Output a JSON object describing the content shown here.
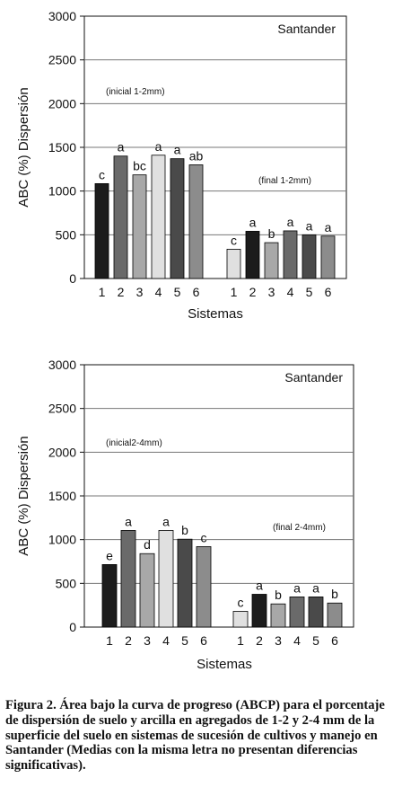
{
  "chart_data": [
    {
      "type": "bar",
      "ylabel": "ABC (%) Dispersión",
      "xlabel": "Sistemas",
      "ylim": [
        0,
        3000
      ],
      "yticks": [
        "0",
        "500",
        "1000",
        "1500",
        "2000",
        "2500",
        "3000"
      ],
      "grid": "horizontal",
      "region_label": "Santander",
      "groups": [
        {
          "label": "(inicial 1-2mm)",
          "categories": [
            "1",
            "2",
            "3",
            "4",
            "5",
            "6"
          ],
          "values": [
            1085,
            1400,
            1185,
            1410,
            1370,
            1300
          ],
          "letters": [
            "c",
            "a",
            "bc",
            "a",
            "a",
            "ab"
          ],
          "colors": [
            "#1c1c1c",
            "#6a6a6a",
            "#a8a8a8",
            "#e0e0e0",
            "#4a4a4a",
            "#8c8c8c"
          ]
        },
        {
          "label": "(final 1-2mm)",
          "categories": [
            "1",
            "2",
            "3",
            "4",
            "5",
            "6"
          ],
          "values": [
            335,
            540,
            410,
            545,
            500,
            485
          ],
          "letters": [
            "c",
            "a",
            "b",
            "a",
            "a",
            "a"
          ],
          "colors": [
            "#e0e0e0",
            "#1c1c1c",
            "#a8a8a8",
            "#6a6a6a",
            "#4a4a4a",
            "#8c8c8c"
          ]
        }
      ]
    },
    {
      "type": "bar",
      "ylabel": "ABC (%) Dispersión",
      "xlabel": "Sistemas",
      "ylim": [
        0,
        3000
      ],
      "yticks": [
        "0",
        "500",
        "1000",
        "1500",
        "2000",
        "2500",
        "3000"
      ],
      "grid": "horizontal",
      "region_label": "Santander",
      "groups": [
        {
          "label": "(inicial2-4mm)",
          "categories": [
            "1",
            "2",
            "3",
            "4",
            "5",
            "6"
          ],
          "values": [
            715,
            1105,
            840,
            1105,
            1005,
            920
          ],
          "letters": [
            "e",
            "a",
            "d",
            "a",
            "b",
            "c"
          ],
          "colors": [
            "#1c1c1c",
            "#6a6a6a",
            "#a8a8a8",
            "#e0e0e0",
            "#4a4a4a",
            "#8c8c8c"
          ]
        },
        {
          "label": "(final 2-4mm)",
          "categories": [
            "1",
            "2",
            "3",
            "4",
            "5",
            "6"
          ],
          "values": [
            180,
            375,
            265,
            345,
            345,
            275
          ],
          "letters": [
            "c",
            "a",
            "b",
            "a",
            "a",
            "b"
          ],
          "colors": [
            "#e0e0e0",
            "#1c1c1c",
            "#a8a8a8",
            "#6a6a6a",
            "#4a4a4a",
            "#8c8c8c"
          ]
        }
      ]
    }
  ],
  "caption": "Figura 2. Área bajo la curva de progreso (ABCP) para el porcentaje de dispersión de suelo y arcilla en agregados de 1-2 y 2-4 mm de la superficie del suelo en sistemas de sucesión de cultivos y manejo en Santander (Medias con la misma letra no presentan diferencias significativas)."
}
